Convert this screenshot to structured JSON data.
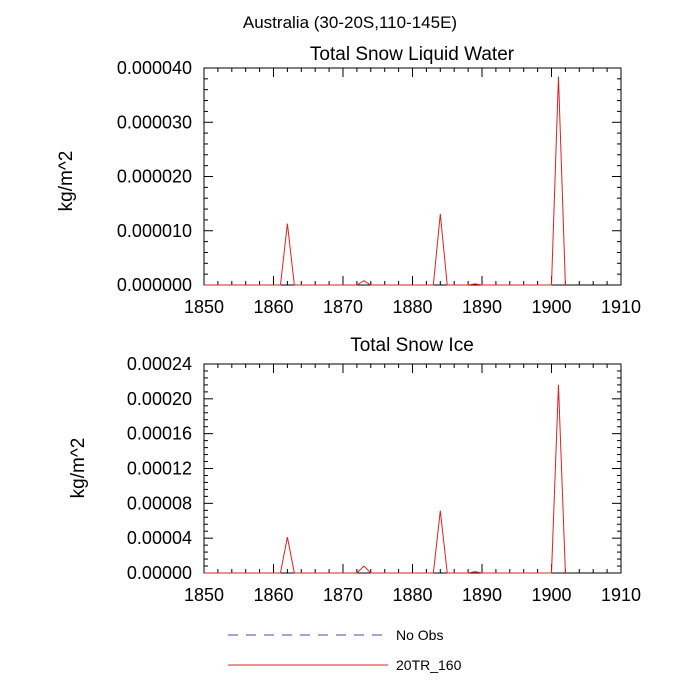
{
  "figure_title": "Australia (30-20S,110-145E)",
  "legend": [
    {
      "label": "No Obs",
      "color": "#4a4ab0",
      "dash": true
    },
    {
      "label": "20TR_160",
      "color": "#e02020",
      "dash": false
    }
  ],
  "chart_data": [
    {
      "type": "line",
      "title": "Total Snow Liquid Water",
      "xlabel": "",
      "ylabel": "kg/m^2",
      "xlim": [
        1850,
        1910
      ],
      "ylim": [
        0,
        4e-05
      ],
      "xticks": [
        1850,
        1860,
        1870,
        1880,
        1890,
        1900,
        1910
      ],
      "yticks": [
        0,
        1e-05,
        2e-05,
        3e-05,
        4e-05
      ],
      "ytick_labels": [
        "0.000000",
        "0.000010",
        "0.000020",
        "0.000030",
        "0.000040"
      ],
      "grid": false,
      "series": [
        {
          "name": "20TR_160",
          "color": "#e02020",
          "x": [
            1850,
            1851,
            1852,
            1853,
            1854,
            1855,
            1856,
            1857,
            1858,
            1859,
            1860,
            1861,
            1862,
            1863,
            1864,
            1865,
            1866,
            1867,
            1868,
            1869,
            1870,
            1871,
            1872,
            1873,
            1874,
            1875,
            1876,
            1877,
            1878,
            1879,
            1880,
            1881,
            1882,
            1883,
            1884,
            1885,
            1886,
            1887,
            1888,
            1889,
            1890,
            1891,
            1892,
            1893,
            1894,
            1895,
            1896,
            1897,
            1898,
            1899,
            1900,
            1901,
            1902,
            1903,
            1904,
            1905,
            1906,
            1907,
            1908,
            1909
          ],
          "y": [
            0,
            0,
            0,
            0,
            0,
            0,
            0,
            0,
            0,
            0,
            0,
            0,
            1.13e-05,
            0,
            0,
            0,
            0,
            0,
            0,
            0,
            0,
            0,
            0,
            8e-07,
            0,
            0,
            0,
            0,
            0,
            0,
            0,
            0,
            0,
            0,
            1.31e-05,
            0,
            0,
            0,
            0,
            2e-07,
            0,
            0,
            0,
            0,
            0,
            0,
            0,
            0,
            0,
            0,
            0,
            3.84e-05,
            0,
            null,
            null,
            null,
            null,
            null,
            null,
            null
          ]
        }
      ]
    },
    {
      "type": "line",
      "title": "Total Snow Ice",
      "xlabel": "",
      "ylabel": "kg/m^2",
      "xlim": [
        1850,
        1910
      ],
      "ylim": [
        0,
        0.00024
      ],
      "xticks": [
        1850,
        1860,
        1870,
        1880,
        1890,
        1900,
        1910
      ],
      "yticks": [
        0,
        4e-05,
        8e-05,
        0.00012,
        0.00016,
        0.0002,
        0.00024
      ],
      "ytick_labels": [
        "0.00000",
        "0.00004",
        "0.00008",
        "0.00012",
        "0.00016",
        "0.00020",
        "0.00024"
      ],
      "grid": false,
      "series": [
        {
          "name": "20TR_160",
          "color": "#e02020",
          "x": [
            1850,
            1851,
            1852,
            1853,
            1854,
            1855,
            1856,
            1857,
            1858,
            1859,
            1860,
            1861,
            1862,
            1863,
            1864,
            1865,
            1866,
            1867,
            1868,
            1869,
            1870,
            1871,
            1872,
            1873,
            1874,
            1875,
            1876,
            1877,
            1878,
            1879,
            1880,
            1881,
            1882,
            1883,
            1884,
            1885,
            1886,
            1887,
            1888,
            1889,
            1890,
            1891,
            1892,
            1893,
            1894,
            1895,
            1896,
            1897,
            1898,
            1899,
            1900,
            1901,
            1902,
            1903,
            1904,
            1905,
            1906,
            1907,
            1908,
            1909
          ],
          "y": [
            0,
            0,
            0,
            0,
            0,
            0,
            0,
            0,
            0,
            0,
            0,
            0,
            4.12e-05,
            0,
            0,
            0,
            0,
            0,
            0,
            0,
            0,
            0,
            0,
            8e-06,
            0,
            0,
            0,
            0,
            0,
            0,
            0,
            0,
            0,
            0,
            7.15e-05,
            0,
            0,
            0,
            0,
            1.5e-06,
            0,
            0,
            0,
            0,
            0,
            0,
            0,
            0,
            0,
            0,
            0,
            0.000216,
            0,
            null,
            null,
            null,
            null,
            null,
            null,
            null
          ]
        }
      ]
    }
  ]
}
